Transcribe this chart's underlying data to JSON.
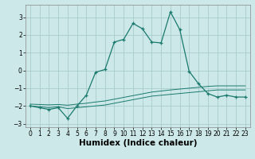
{
  "title": "",
  "xlabel": "Humidex (Indice chaleur)",
  "ylabel": "",
  "bg_color": "#cce8e8",
  "grid_color": "#aacccc",
  "line_color": "#1a7a6e",
  "x": [
    0,
    1,
    2,
    3,
    4,
    5,
    6,
    7,
    8,
    9,
    10,
    11,
    12,
    13,
    14,
    15,
    16,
    17,
    18,
    19,
    20,
    21,
    22,
    23
  ],
  "y_main": [
    -2.0,
    -2.1,
    -2.2,
    -2.1,
    -2.7,
    -2.0,
    -1.4,
    -0.1,
    0.05,
    1.6,
    1.75,
    2.65,
    2.35,
    1.6,
    1.55,
    3.3,
    2.3,
    -0.05,
    -0.75,
    -1.3,
    -1.5,
    -1.4,
    -1.5,
    -1.5
  ],
  "y_lower": [
    -2.0,
    -2.05,
    -2.1,
    -2.05,
    -2.15,
    -2.1,
    -2.05,
    -2.0,
    -1.95,
    -1.85,
    -1.75,
    -1.65,
    -1.55,
    -1.45,
    -1.4,
    -1.35,
    -1.3,
    -1.25,
    -1.2,
    -1.15,
    -1.1,
    -1.1,
    -1.1,
    -1.1
  ],
  "y_upper": [
    -1.9,
    -1.92,
    -1.94,
    -1.92,
    -1.96,
    -1.9,
    -1.85,
    -1.78,
    -1.72,
    -1.62,
    -1.52,
    -1.42,
    -1.32,
    -1.22,
    -1.16,
    -1.1,
    -1.05,
    -1.0,
    -0.95,
    -0.9,
    -0.87,
    -0.87,
    -0.87,
    -0.87
  ],
  "ylim": [
    -3.2,
    3.7
  ],
  "xlim": [
    -0.5,
    23.5
  ],
  "yticks": [
    -3,
    -2,
    -1,
    0,
    1,
    2,
    3
  ],
  "xticks": [
    0,
    1,
    2,
    3,
    4,
    5,
    6,
    7,
    8,
    9,
    10,
    11,
    12,
    13,
    14,
    15,
    16,
    17,
    18,
    19,
    20,
    21,
    22,
    23
  ],
  "tick_fontsize": 5.5,
  "xlabel_fontsize": 7.5
}
